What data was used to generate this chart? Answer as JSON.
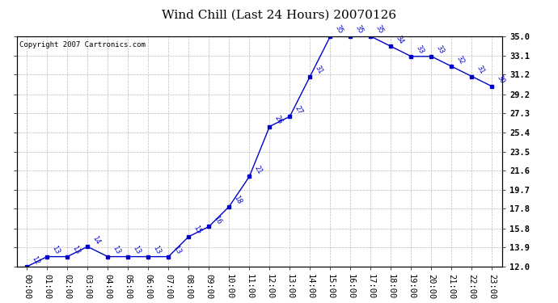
{
  "title": "Wind Chill (Last 24 Hours) 20070126",
  "copyright": "Copyright 2007 Cartronics.com",
  "hours": [
    0,
    1,
    2,
    3,
    4,
    5,
    6,
    7,
    8,
    9,
    10,
    11,
    12,
    13,
    14,
    15,
    16,
    17,
    18,
    19,
    20,
    21,
    22,
    23
  ],
  "values": [
    12,
    13,
    13,
    14,
    13,
    13,
    13,
    13,
    15,
    16,
    18,
    21,
    26,
    27,
    31,
    35,
    35,
    35,
    34,
    33,
    33,
    32,
    31,
    30
  ],
  "xlabels": [
    "00:00",
    "01:00",
    "02:00",
    "03:00",
    "04:00",
    "05:00",
    "06:00",
    "07:00",
    "08:00",
    "09:00",
    "10:00",
    "11:00",
    "12:00",
    "13:00",
    "14:00",
    "15:00",
    "16:00",
    "17:00",
    "18:00",
    "19:00",
    "20:00",
    "21:00",
    "22:00",
    "23:00"
  ],
  "ylim": [
    12.0,
    35.0
  ],
  "yticks": [
    12.0,
    13.9,
    15.8,
    17.8,
    19.7,
    21.6,
    23.5,
    25.4,
    27.3,
    29.2,
    31.2,
    33.1,
    35.0
  ],
  "ytick_labels": [
    "12.0",
    "13.9",
    "15.8",
    "17.8",
    "19.7",
    "21.6",
    "23.5",
    "25.4",
    "27.3",
    "29.2",
    "31.2",
    "33.1",
    "35.0"
  ],
  "line_color": "#0000cc",
  "marker_color": "#0000cc",
  "bg_color": "#ffffff",
  "grid_color": "#bbbbbb",
  "title_fontsize": 11,
  "tick_fontsize": 7.5,
  "annot_fontsize": 6,
  "copyright_fontsize": 6.5
}
